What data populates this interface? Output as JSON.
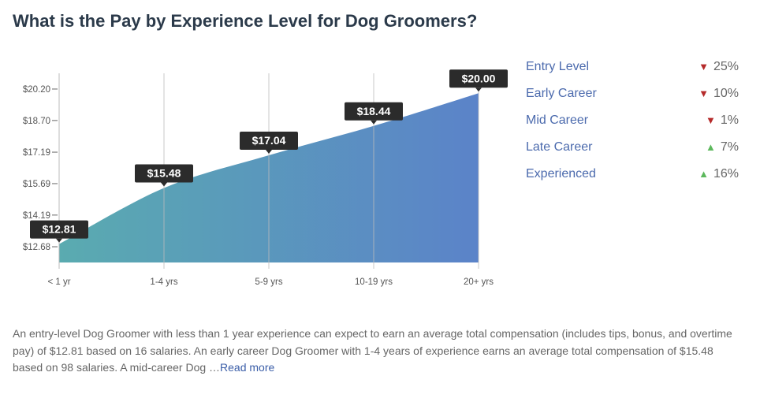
{
  "title": "What is the Pay by Experience Level for Dog Groomers?",
  "chart_data": {
    "type": "area",
    "categories": [
      "< 1 yr",
      "1-4 yrs",
      "5-9 yrs",
      "10-19 yrs",
      "20+ yrs"
    ],
    "values": [
      12.81,
      15.48,
      17.04,
      18.44,
      20.0
    ],
    "data_labels": [
      "$12.81",
      "$15.48",
      "$17.04",
      "$18.44",
      "$20.00"
    ],
    "y_ticks": [
      12.68,
      14.19,
      15.69,
      17.19,
      18.7,
      20.2
    ],
    "y_tick_labels": [
      "$12.68",
      "$14.19",
      "$15.69",
      "$17.19",
      "$18.70",
      "$20.20"
    ],
    "ylim": [
      11.93,
      20.95
    ],
    "grid": "vertical",
    "colors": {
      "gradient_start": "#5aabb0",
      "gradient_end": "#5b83c9",
      "label_bg": "#2b2b2b"
    }
  },
  "legend": [
    {
      "label": "Entry Level",
      "direction": "down",
      "value": "25%",
      "color": "#b52a2a"
    },
    {
      "label": "Early Career",
      "direction": "down",
      "value": "10%",
      "color": "#b52a2a"
    },
    {
      "label": "Mid Career",
      "direction": "down",
      "value": "1%",
      "color": "#b52a2a"
    },
    {
      "label": "Late Career",
      "direction": "up",
      "value": "7%",
      "color": "#5cb85c"
    },
    {
      "label": "Experienced",
      "direction": "up",
      "value": "16%",
      "color": "#5cb85c"
    }
  ],
  "description": "An entry-level Dog Groomer with less than 1 year experience can expect to earn an average total compensation (includes tips, bonus, and overtime pay) of $12.81 based on 16 salaries. An early career Dog Groomer with 1-4 years of experience earns an average total compensation of $15.48 based on 98 salaries. A mid-career Dog  …",
  "read_more": "Read more"
}
